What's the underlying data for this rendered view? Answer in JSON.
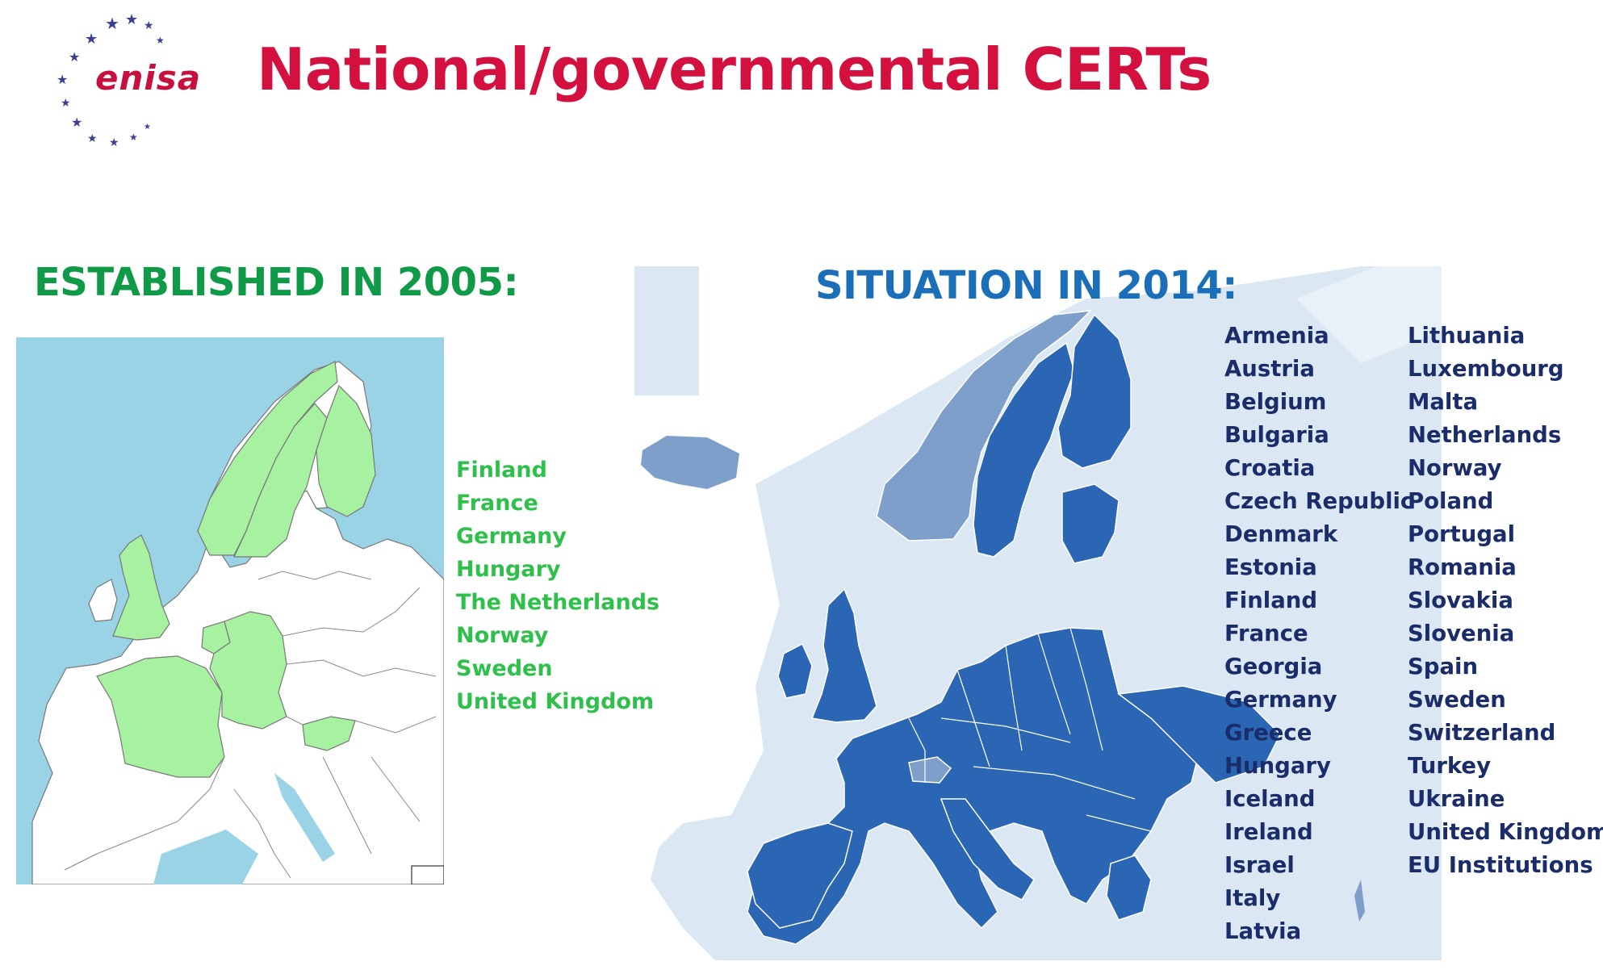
{
  "header": {
    "logo_text": "enisa",
    "title": "National/governmental CERTs"
  },
  "left_panel": {
    "heading": "ESTABLISHED IN 2005:",
    "countries": [
      "Finland",
      "France",
      "Germany",
      "Hungary",
      "The Netherlands",
      "Norway",
      "Sweden",
      "United Kingdom"
    ],
    "colors": {
      "highlight": "#a6f2a0",
      "sea": "#9ad3e6",
      "land": "#ffffff"
    }
  },
  "right_panel": {
    "heading": "SITUATION IN 2014:",
    "countries_col1": [
      "Armenia",
      "Austria",
      "Belgium",
      "Bulgaria",
      "Croatia",
      "Czech Republic",
      "Denmark",
      "Estonia",
      "Finland",
      "France",
      "Georgia",
      "Germany",
      "Greece",
      "Hungary",
      "Iceland",
      "Ireland",
      "Israel",
      "Italy",
      "Latvia"
    ],
    "countries_col2": [
      "Lithuania",
      "Luxembourg",
      "Malta",
      "Netherlands",
      "Norway",
      "Poland",
      "Portugal",
      "Romania",
      "Slovakia",
      "Slovenia",
      "Spain",
      "Sweden",
      "Switzerland",
      "Turkey",
      "Ukraine",
      "United Kingdom",
      "EU Institutions"
    ],
    "colors": {
      "eu_member": "#2a66b3",
      "other_cert": "#7e9fca",
      "background_land": "#dbe8f4"
    }
  }
}
